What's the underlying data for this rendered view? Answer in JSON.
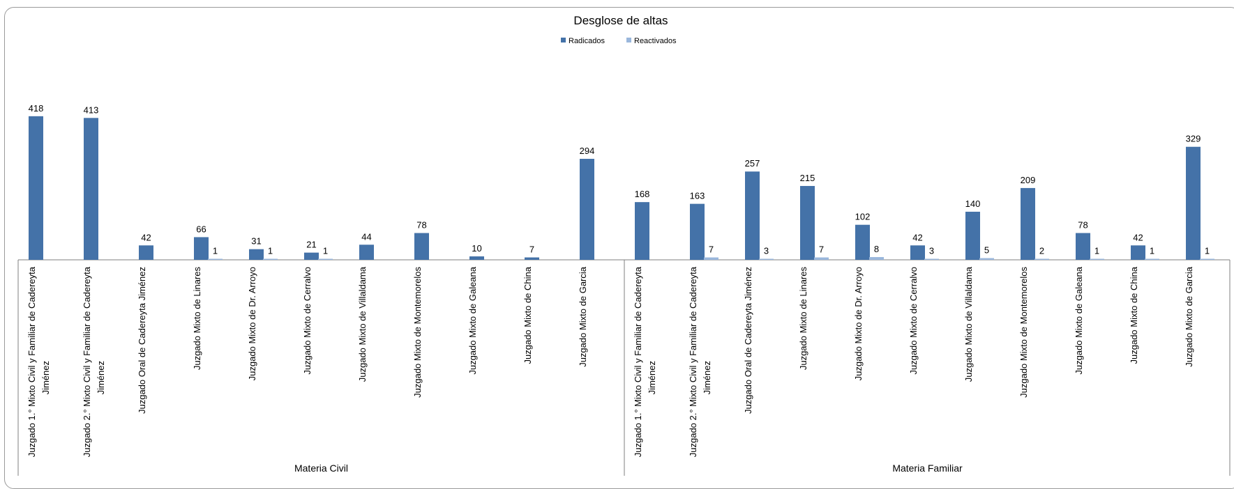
{
  "chart_data": {
    "type": "bar",
    "title": "Desglose de altas",
    "legend": {
      "position": "top",
      "entries": [
        "Radicados",
        "Reactivados"
      ]
    },
    "colors": {
      "Radicados": "#4472a8",
      "Reactivados": "#9ab7dc"
    },
    "grid": false,
    "groups": [
      {
        "name": "Materia Civil",
        "categories": [
          "Juzgado 1.° Mixto Civil y Familiar de Cadereyta Jiménez",
          "Juzgado 2.° Mixto Civil y Familiar de Cadereyta Jiménez",
          "Juzgado Oral de Cadereyta Jiménez",
          "Juzgado Mixto de Linares",
          "Juzgado Mixto de Dr. Arroyo",
          "Juzgado Mixto de Cerralvo",
          "Juzgado Mixto de Villaldama",
          "Juzgado Mixto de Montemorelos",
          "Juzgado Mixto de Galeana",
          "Juzgado Mixto de China",
          "Juzgado Mixto de Garcia"
        ],
        "series": [
          {
            "name": "Radicados",
            "values": [
              418,
              413,
              42,
              66,
              31,
              21,
              44,
              78,
              10,
              7,
              294
            ]
          },
          {
            "name": "Reactivados",
            "values": [
              null,
              null,
              null,
              1,
              1,
              1,
              null,
              null,
              null,
              null,
              null
            ]
          }
        ]
      },
      {
        "name": "Materia Familiar",
        "categories": [
          "Juzgado 1.° Mixto Civil y Familiar de Cadereyta Jiménez",
          "Juzgado 2.° Mixto Civil y Familiar de Cadereyta Jiménez",
          "Juzgado Oral de Cadereyta Jiménez",
          "Juzgado Mixto de Linares",
          "Juzgado Mixto de Dr. Arroyo",
          "Juzgado Mixto de Cerralvo",
          "Juzgado Mixto de Villaldama",
          "Juzgado Mixto de Montemorelos",
          "Juzgado Mixto de Galeana",
          "Juzgado Mixto de China",
          "Juzgado Mixto de Garcia"
        ],
        "series": [
          {
            "name": "Radicados",
            "values": [
              168,
              163,
              257,
              215,
              102,
              42,
              140,
              209,
              78,
              42,
              329
            ]
          },
          {
            "name": "Reactivados",
            "values": [
              null,
              7,
              3,
              7,
              8,
              3,
              5,
              2,
              1,
              1,
              1
            ]
          }
        ]
      }
    ]
  }
}
